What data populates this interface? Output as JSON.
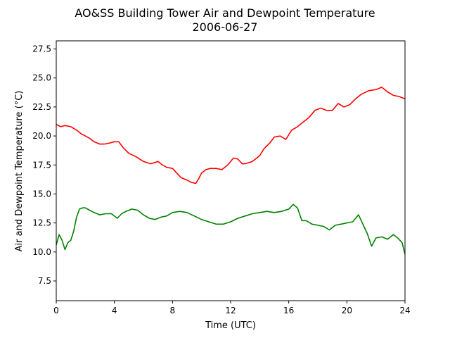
{
  "chart_data": {
    "type": "line",
    "title": "AO&SS Building Tower Air and Dewpoint Temperature",
    "subtitle": "2006-06-27",
    "xlabel": "Time (UTC)",
    "ylabel": "Air and Dewpoint Temperature (°C)",
    "xlim": [
      0,
      24
    ],
    "ylim": [
      5.8,
      28.2
    ],
    "xticks": [
      "0",
      "4",
      "8",
      "12",
      "16",
      "20",
      "24"
    ],
    "yticks": [
      "7.5",
      "10.0",
      "12.5",
      "15.0",
      "17.5",
      "20.0",
      "22.5",
      "25.0",
      "27.5"
    ],
    "grid": false,
    "series": [
      {
        "color": "#ff0000",
        "x": [
          0,
          0.3,
          0.6,
          1.0,
          1.4,
          1.7,
          2.0,
          2.3,
          2.6,
          3.0,
          3.3,
          3.7,
          4.0,
          4.3,
          4.6,
          5.0,
          5.5,
          6.0,
          6.5,
          7.0,
          7.3,
          7.6,
          8.0,
          8.3,
          8.6,
          9.0,
          9.3,
          9.6,
          9.8,
          10.0,
          10.3,
          10.6,
          11.0,
          11.4,
          11.8,
          12.2,
          12.5,
          12.8,
          13.0,
          13.5,
          14.0,
          14.3,
          14.7,
          15.0,
          15.4,
          15.8,
          16.2,
          16.6,
          17.0,
          17.4,
          17.8,
          18.2,
          18.6,
          19.0,
          19.4,
          19.8,
          20.2,
          20.6,
          21.0,
          21.5,
          22.0,
          22.4,
          22.8,
          23.2,
          23.6,
          24.0
        ],
        "y": [
          21.0,
          20.8,
          20.9,
          20.8,
          20.5,
          20.2,
          20.0,
          19.8,
          19.5,
          19.3,
          19.3,
          19.4,
          19.5,
          19.5,
          19.0,
          18.5,
          18.2,
          17.8,
          17.6,
          17.8,
          17.5,
          17.3,
          17.2,
          16.8,
          16.4,
          16.2,
          16.0,
          15.9,
          16.3,
          16.8,
          17.1,
          17.2,
          17.2,
          17.1,
          17.5,
          18.1,
          18.0,
          17.6,
          17.6,
          17.8,
          18.3,
          18.9,
          19.4,
          19.9,
          20.0,
          19.7,
          20.5,
          20.8,
          21.2,
          21.6,
          22.2,
          22.4,
          22.2,
          22.2,
          22.8,
          22.5,
          22.7,
          23.2,
          23.6,
          23.9,
          24.0,
          24.2,
          23.8,
          23.5,
          23.4,
          23.2
        ]
      },
      {
        "color": "#008000",
        "x": [
          0,
          0.2,
          0.4,
          0.6,
          0.8,
          1.0,
          1.2,
          1.4,
          1.6,
          1.8,
          2.0,
          2.3,
          2.6,
          3.0,
          3.4,
          3.8,
          4.2,
          4.5,
          4.8,
          5.2,
          5.6,
          6.0,
          6.4,
          6.8,
          7.2,
          7.6,
          8.0,
          8.5,
          9.0,
          9.5,
          10.0,
          10.5,
          11.0,
          11.5,
          12.0,
          12.5,
          13.0,
          13.5,
          14.0,
          14.5,
          15.0,
          15.5,
          16.0,
          16.3,
          16.6,
          16.9,
          17.2,
          17.6,
          18.0,
          18.4,
          18.8,
          19.2,
          19.6,
          20.0,
          20.4,
          20.8,
          21.1,
          21.4,
          21.7,
          22.0,
          22.4,
          22.8,
          23.2,
          23.5,
          23.8,
          24.0
        ],
        "y": [
          10.6,
          11.5,
          11.0,
          10.2,
          10.8,
          11.0,
          11.8,
          13.0,
          13.7,
          13.8,
          13.8,
          13.6,
          13.4,
          13.2,
          13.3,
          13.3,
          12.9,
          13.3,
          13.5,
          13.7,
          13.6,
          13.2,
          12.9,
          12.8,
          13.0,
          13.1,
          13.4,
          13.5,
          13.4,
          13.1,
          12.8,
          12.6,
          12.4,
          12.4,
          12.6,
          12.9,
          13.1,
          13.3,
          13.4,
          13.5,
          13.4,
          13.5,
          13.7,
          14.1,
          13.8,
          12.7,
          12.7,
          12.4,
          12.3,
          12.2,
          11.9,
          12.3,
          12.4,
          12.5,
          12.6,
          13.2,
          12.4,
          11.6,
          10.5,
          11.2,
          11.3,
          11.1,
          11.5,
          11.2,
          10.8,
          9.8
        ]
      }
    ]
  }
}
